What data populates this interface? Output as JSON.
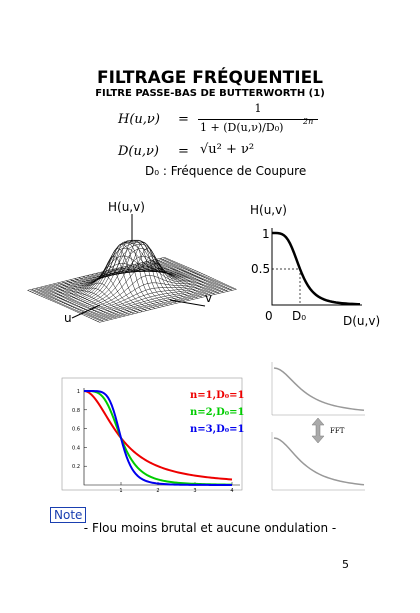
{
  "header": {
    "title": "FILTRAGE FRÉQUENTIEL",
    "subtitle": "FILTRE PASSE-BAS DE BUTTERWORTH (1)"
  },
  "equations": [
    {
      "lhs": "H(u,ν)",
      "sign": "=",
      "numerator": "1",
      "denominator": "1 + (D(u,ν)/D₀)",
      "exponent": "2n"
    },
    {
      "lhs": "D(u,ν)",
      "sign": "=",
      "rhs": "√u² + ν²"
    }
  ],
  "definition": "D₀ : Fréquence de Coupure",
  "figure_3d": {
    "z_label": "H(u,v)",
    "u_label": "u",
    "v_label": "v"
  },
  "figure_profile": {
    "y_label": "H(u,v)",
    "x_label": "D(u,v)",
    "tick_one": "1",
    "tick_half": "0.5",
    "tick_zero": "0",
    "cutoff_label": "D₀"
  },
  "comparison_plot": {
    "yticks": [
      0.2,
      0.4,
      0.6,
      0.8,
      1
    ],
    "xticks": [
      1,
      2,
      3,
      4
    ],
    "legend": [
      "n=1,D₀=1",
      "n=2,D₀=1",
      "n=3,D₀=1"
    ]
  },
  "fft_label": "FFT",
  "note": {
    "tag": "Note",
    "text": "- Flou moins brutal et aucune ondulation -"
  },
  "page_number": "5"
}
